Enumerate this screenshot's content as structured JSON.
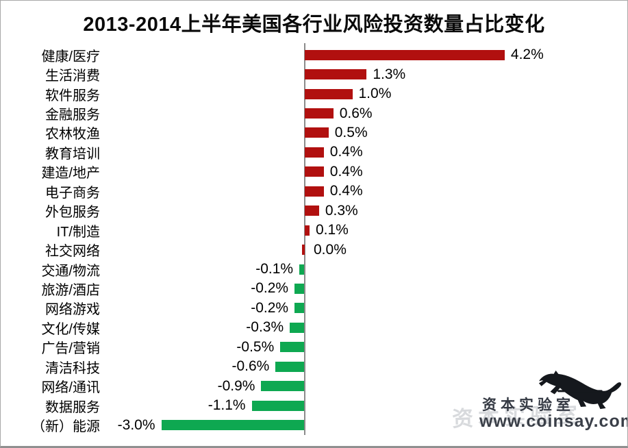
{
  "title": "2013-2014上半年美国各行业风险投资数量占比变化",
  "chart_data": {
    "type": "bar",
    "orientation": "horizontal",
    "title": "2013-2014上半年美国各行业风险投资数量占比变化",
    "categories": [
      "健康/医疗",
      "生活消费",
      "软件服务",
      "金融服务",
      "农林牧渔",
      "教育培训",
      "建造/地产",
      "电子商务",
      "外包服务",
      "IT/制造",
      "社交网络",
      "交通/物流",
      "旅游/酒店",
      "网络游戏",
      "文化/传媒",
      "广告/营销",
      "清洁科技",
      "网络/通讯",
      "数据服务",
      "（新）能源"
    ],
    "values": [
      4.2,
      1.3,
      1.0,
      0.6,
      0.5,
      0.4,
      0.4,
      0.4,
      0.3,
      0.1,
      0.0,
      -0.1,
      -0.2,
      -0.2,
      -0.3,
      -0.5,
      -0.6,
      -0.9,
      -1.1,
      -3.0
    ],
    "value_labels": [
      "4.2%",
      "1.3%",
      "1.0%",
      "0.6%",
      "0.5%",
      "0.4%",
      "0.4%",
      "0.4%",
      "0.3%",
      "0.1%",
      "0.0%",
      "-0.1%",
      "-0.2%",
      "-0.2%",
      "-0.3%",
      "-0.5%",
      "-0.6%",
      "-0.9%",
      "-1.1%",
      "-3.0%"
    ],
    "xlim": [
      -3.2,
      4.5
    ],
    "grid": false,
    "legend": "none",
    "positive_color": "#b1100f",
    "negative_color": "#0ea851",
    "axis_color": "#8a8a8a",
    "label_color": "#000000"
  },
  "watermark": {
    "brand": "资本实验室",
    "url": "www.coinsay.com",
    "icon": "leaping-panther",
    "icon_color": "#15181d",
    "text_color": "#343943"
  }
}
